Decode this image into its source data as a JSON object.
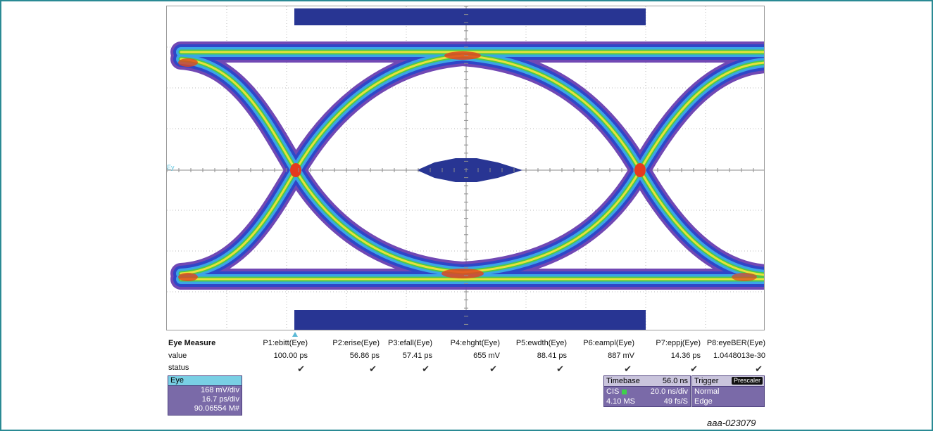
{
  "screen": {
    "trace_label": "Ey",
    "colors": {
      "mask": "#283593",
      "grid": "#b8b8b8",
      "border": "#9a9a9a",
      "frame": "#2a8a94"
    }
  },
  "measure": {
    "title": "Eye Measure",
    "row_labels": {
      "value": "value",
      "status": "status"
    },
    "params": [
      {
        "header": "P1:ebitt(Eye)",
        "value": "100.00 ps",
        "status": "✔"
      },
      {
        "header": "P2:erise(Eye)",
        "value": "56.86 ps",
        "status": "✔"
      },
      {
        "header": "P3:efall(Eye)",
        "value": "57.41 ps",
        "status": "✔"
      },
      {
        "header": "P4:ehght(Eye)",
        "value": "655 mV",
        "status": "✔"
      },
      {
        "header": "P5:ewdth(Eye)",
        "value": "88.41 ps",
        "status": "✔"
      },
      {
        "header": "P6:eampl(Eye)",
        "value": "887 mV",
        "status": "✔"
      },
      {
        "header": "P7:eppj(Eye)",
        "value": "14.36 ps",
        "status": "✔"
      },
      {
        "header": "P8:eyeBER(Eye)",
        "value": "1.0448013e-30",
        "status": "✔"
      }
    ]
  },
  "eye_descriptor": {
    "title": "Eye",
    "vscale": "168 mV/div",
    "hscale": "16.7 ps/div",
    "count": "90.06554 M#"
  },
  "timebase": {
    "title": "Timebase",
    "delay": "56.0 ns",
    "mode": "CIS",
    "scale": "20.0 ns/div",
    "samples": "4.10 MS",
    "rate": "49 fs/S"
  },
  "trigger": {
    "title": "Trigger",
    "badge": "Prescaler",
    "mode": "Normal",
    "type": "Edge"
  },
  "caption": "aaa-023079"
}
